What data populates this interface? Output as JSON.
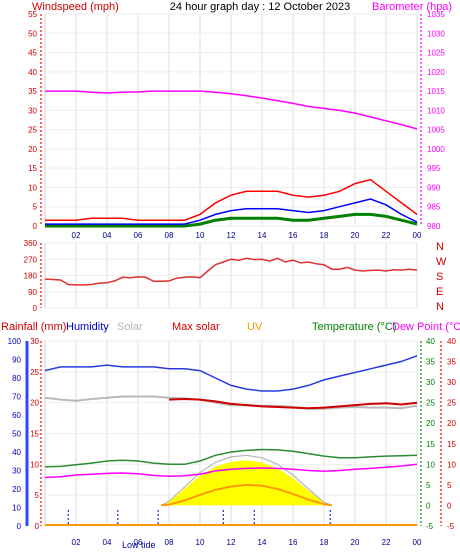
{
  "header": {
    "windspeed_label": "Windspeed (mph)",
    "title": "24 hour graph day : 12 October 2023",
    "barometer_label": "Barometer (hpa)"
  },
  "legend": {
    "rainfall": "Rainfall (mm)",
    "humidity": "Humidity",
    "solar": "Solar",
    "max_solar": "Max solar",
    "uv": "UV",
    "temperature": "Temperature (°C)",
    "dew_point": "Dew Point (°C)"
  },
  "annotations": {
    "low_tide": "Low tide"
  },
  "colors": {
    "wind": "#ff0000",
    "avg_wind": "#0000ff",
    "low_wind": "#008000",
    "barometer": "#ff00ff",
    "direction": "#e03030",
    "humidity": "#2a3ae0",
    "solar": "#b8b8b8",
    "max_solar": "#cc0000",
    "solar_fill": "#ffff00",
    "uv": "#ff9900",
    "temperature": "#2e8b2e",
    "dew_point": "#ff00ff",
    "rain_axis": "#d00000",
    "humidity_axis": "#0000c8"
  },
  "chart_data": [
    {
      "type": "line",
      "name": "wind-barometer",
      "x_ticks": [
        "02",
        "04",
        "06",
        "08",
        "10",
        "12",
        "14",
        "16",
        "18",
        "20",
        "22",
        "00"
      ],
      "ylabel_left": "Windspeed (mph)",
      "ylim_left": [
        0,
        55
      ],
      "yticks_left": [
        0,
        5,
        10,
        15,
        20,
        25,
        30,
        35,
        40,
        45,
        50,
        55
      ],
      "ylabel_right": "Barometer (hpa)",
      "ylim_right": [
        980,
        1035
      ],
      "yticks_right": [
        980,
        985,
        990,
        995,
        1000,
        1005,
        1010,
        1015,
        1020,
        1025,
        1030,
        1035
      ],
      "gust": {
        "x": [
          0,
          1,
          2,
          3,
          4,
          5,
          6,
          7,
          8,
          9,
          10,
          11,
          12,
          13,
          14,
          15,
          16,
          17,
          18,
          19,
          20,
          21,
          22,
          23,
          24
        ],
        "y": [
          1.5,
          1.5,
          1.5,
          2,
          2,
          2,
          1.5,
          1.5,
          1.5,
          1.5,
          3,
          6,
          8,
          9,
          9,
          9,
          8,
          7.5,
          8,
          9,
          11,
          12,
          9,
          6,
          3
        ]
      },
      "average": {
        "x": [
          0,
          1,
          2,
          3,
          4,
          5,
          6,
          7,
          8,
          9,
          10,
          11,
          12,
          13,
          14,
          15,
          16,
          17,
          18,
          19,
          20,
          21,
          22,
          23,
          24
        ],
        "y": [
          0.5,
          0.5,
          0.5,
          0.5,
          0.5,
          0.5,
          0.5,
          0.5,
          0.5,
          0.5,
          1.5,
          3,
          4,
          4.5,
          4.5,
          4.5,
          4,
          3.5,
          4,
          5,
          6,
          7,
          5.5,
          3,
          1
        ]
      },
      "low": {
        "x": [
          0,
          1,
          2,
          3,
          4,
          5,
          6,
          7,
          8,
          9,
          10,
          11,
          12,
          13,
          14,
          15,
          16,
          17,
          18,
          19,
          20,
          21,
          22,
          23,
          24
        ],
        "y": [
          0,
          0,
          0,
          0,
          0,
          0,
          0,
          0,
          0,
          0,
          0.5,
          1.5,
          2,
          2,
          2,
          2,
          1.5,
          1.5,
          2,
          2.5,
          3,
          3,
          2.5,
          1.5,
          0.5
        ]
      },
      "barometer": {
        "x": [
          0,
          1,
          2,
          3,
          4,
          5,
          6,
          7,
          8,
          9,
          10,
          11,
          12,
          13,
          14,
          15,
          16,
          17,
          18,
          19,
          20,
          21,
          22,
          23,
          24
        ],
        "y": [
          1015,
          1015,
          1015,
          1014.7,
          1014.5,
          1014.7,
          1014.8,
          1015,
          1015,
          1015,
          1015,
          1014.7,
          1014.3,
          1013.8,
          1013.2,
          1012.5,
          1011.8,
          1011,
          1010.5,
          1010,
          1009.3,
          1008.3,
          1007.3,
          1006.3,
          1005.2
        ]
      }
    },
    {
      "type": "line",
      "name": "wind-direction",
      "ylim": [
        0,
        360
      ],
      "yticks": [
        0,
        90,
        180,
        270,
        360
      ],
      "compass_labels": [
        "N",
        "W",
        "S",
        "E",
        "N"
      ],
      "direction": {
        "x": [
          0,
          0.5,
          1,
          1.5,
          2,
          2.5,
          3,
          3.5,
          4,
          4.5,
          5,
          5.5,
          6,
          6.5,
          7,
          7.5,
          8,
          8.5,
          9,
          9.5,
          10,
          10.5,
          11,
          11.5,
          12,
          12.5,
          13,
          13.5,
          14,
          14.5,
          15,
          15.5,
          16,
          16.5,
          17,
          17.5,
          18,
          18.5,
          19,
          19.5,
          20,
          20.5,
          21,
          21.5,
          22,
          22.5,
          23,
          23.5,
          24
        ],
        "y": [
          160,
          158,
          155,
          130,
          128,
          128,
          130,
          138,
          140,
          150,
          170,
          168,
          172,
          170,
          148,
          148,
          150,
          165,
          170,
          172,
          168,
          205,
          240,
          255,
          270,
          265,
          275,
          268,
          270,
          260,
          275,
          255,
          265,
          250,
          255,
          245,
          240,
          215,
          215,
          225,
          210,
          205,
          208,
          210,
          205,
          212,
          210,
          215,
          210
        ]
      }
    },
    {
      "type": "line",
      "name": "rain-humidity-temperature",
      "rain_axis": {
        "label": "Rainfall (mm)",
        "ylim": [
          0,
          30
        ],
        "yticks": [
          0,
          5,
          10,
          15,
          20,
          25,
          30
        ]
      },
      "humidity_axis": {
        "label": "Humidity",
        "ylim": [
          0,
          100
        ],
        "yticks": [
          0,
          10,
          20,
          30,
          40,
          50,
          60,
          70,
          80,
          90,
          100
        ]
      },
      "temp_axis": {
        "label": "Temperature (°C)",
        "ylim": [
          -5,
          40
        ],
        "yticks": [
          -5,
          0,
          5,
          10,
          15,
          20,
          25,
          30,
          35,
          40
        ]
      },
      "humidity": {
        "x": [
          0,
          1,
          2,
          3,
          4,
          5,
          6,
          7,
          8,
          9,
          10,
          11,
          12,
          13,
          14,
          15,
          16,
          17,
          18,
          19,
          20,
          21,
          22,
          23,
          24
        ],
        "y": [
          84,
          86,
          86,
          86,
          87,
          86,
          86,
          86,
          85,
          85,
          84,
          80,
          76,
          74,
          73,
          73,
          74,
          76,
          79,
          81,
          83,
          85,
          87,
          89,
          92
        ]
      },
      "solar_max": {
        "x": [
          0,
          1,
          2,
          3,
          4,
          5,
          6,
          7,
          8,
          9,
          10,
          11,
          12,
          13,
          14,
          15,
          16,
          17,
          18,
          19,
          20,
          21,
          22,
          23,
          24
        ],
        "y": [
          null,
          null,
          null,
          null,
          null,
          null,
          null,
          null,
          20.5,
          20.6,
          20.5,
          20.2,
          19.8,
          19.6,
          19.4,
          19.3,
          19.2,
          19.1,
          19.2,
          19.4,
          19.6,
          19.8,
          19.9,
          19.7,
          20
        ]
      },
      "solar": {
        "x": [
          0,
          1,
          2,
          3,
          4,
          5,
          6,
          7,
          8,
          9,
          10,
          11,
          12,
          13,
          14,
          15,
          16,
          17,
          18,
          19,
          20,
          21,
          22,
          23,
          24
        ],
        "y": [
          20.8,
          20.5,
          20.3,
          20.6,
          20.8,
          21,
          21,
          21,
          20.8,
          20.7,
          20.5,
          20,
          19.6,
          19.6,
          19.5,
          19.5,
          19.3,
          19,
          19,
          19.2,
          19.3,
          19.2,
          19.2,
          19.1,
          19.5
        ]
      },
      "temperature": {
        "x": [
          0,
          1,
          2,
          3,
          4,
          5,
          6,
          7,
          8,
          9,
          10,
          11,
          12,
          13,
          14,
          15,
          16,
          17,
          18,
          19,
          20,
          21,
          22,
          23,
          24
        ],
        "y": [
          9.4,
          9.5,
          9.9,
          10.3,
          10.8,
          11.0,
          10.8,
          10.3,
          10.0,
          10.0,
          10.8,
          12.2,
          13.0,
          13.4,
          13.6,
          13.5,
          13.2,
          12.6,
          12.0,
          11.6,
          11.6,
          11.8,
          12.0,
          12.1,
          12.2
        ]
      },
      "dew_point": {
        "x": [
          0,
          1,
          2,
          3,
          4,
          5,
          6,
          7,
          8,
          9,
          10,
          11,
          12,
          13,
          14,
          15,
          16,
          17,
          18,
          19,
          20,
          21,
          22,
          23,
          24
        ],
        "y": [
          6.8,
          7.0,
          7.4,
          7.6,
          7.8,
          7.9,
          7.7,
          7.3,
          7.1,
          7.2,
          7.6,
          8.4,
          8.8,
          9.0,
          9.1,
          9.0,
          8.8,
          8.5,
          8.3,
          8.5,
          8.8,
          9.0,
          9.3,
          9.6,
          10.0
        ]
      },
      "max_solar_curve": {
        "x": [
          7.5,
          8,
          9,
          10,
          11,
          12,
          13,
          14,
          15,
          16,
          17,
          18,
          18.5
        ],
        "y": [
          0,
          1.0,
          4.5,
          8.0,
          10.5,
          11.8,
          12.2,
          11.6,
          10.0,
          7.4,
          4.0,
          0.8,
          0
        ]
      },
      "uv": {
        "x": [
          7.5,
          8,
          9,
          10,
          11,
          12,
          13,
          14,
          15,
          16,
          17,
          18,
          18.5
        ],
        "y": [
          0,
          0.2,
          1.2,
          2.6,
          3.8,
          4.6,
          5.0,
          4.8,
          4.0,
          2.8,
          1.4,
          0.3,
          0
        ]
      },
      "tide_markers": [
        1.5,
        4.7,
        7.3,
        11.5,
        13.5,
        18.4
      ]
    }
  ]
}
